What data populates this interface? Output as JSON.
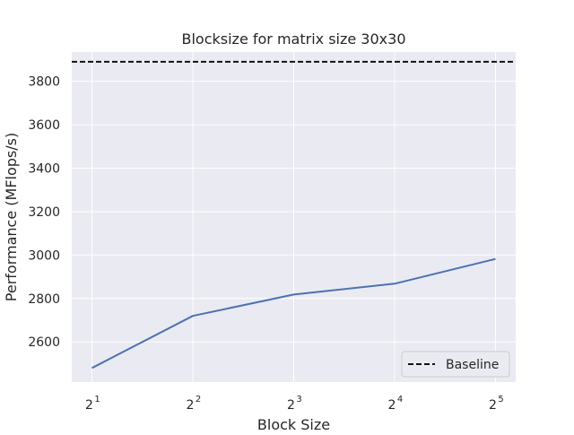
{
  "chart_data": {
    "type": "line",
    "title": "Blocksize for matrix size 30x30",
    "xlabel": "Block Size",
    "ylabel": "Performance (MFlops/s)",
    "x": [
      1,
      2,
      3,
      4,
      5
    ],
    "x_tick_labels": [
      {
        "base": "2",
        "exp": "1"
      },
      {
        "base": "2",
        "exp": "2"
      },
      {
        "base": "2",
        "exp": "3"
      },
      {
        "base": "2",
        "exp": "4"
      },
      {
        "base": "2",
        "exp": "5"
      }
    ],
    "series": [
      {
        "values": [
          2480,
          2720,
          2818,
          2868,
          2982
        ],
        "color": "#4c72b0"
      }
    ],
    "baseline": {
      "name": "Baseline",
      "value": 3890,
      "color": "#111111",
      "dash": true
    },
    "y_ticks": [
      2600,
      2800,
      3000,
      3200,
      3400,
      3600,
      3800
    ],
    "xlim": [
      0.8,
      5.2
    ],
    "ylim": [
      2415,
      3935
    ],
    "grid": true,
    "legend_position": "lower-right",
    "background": "#eaeaf2"
  }
}
